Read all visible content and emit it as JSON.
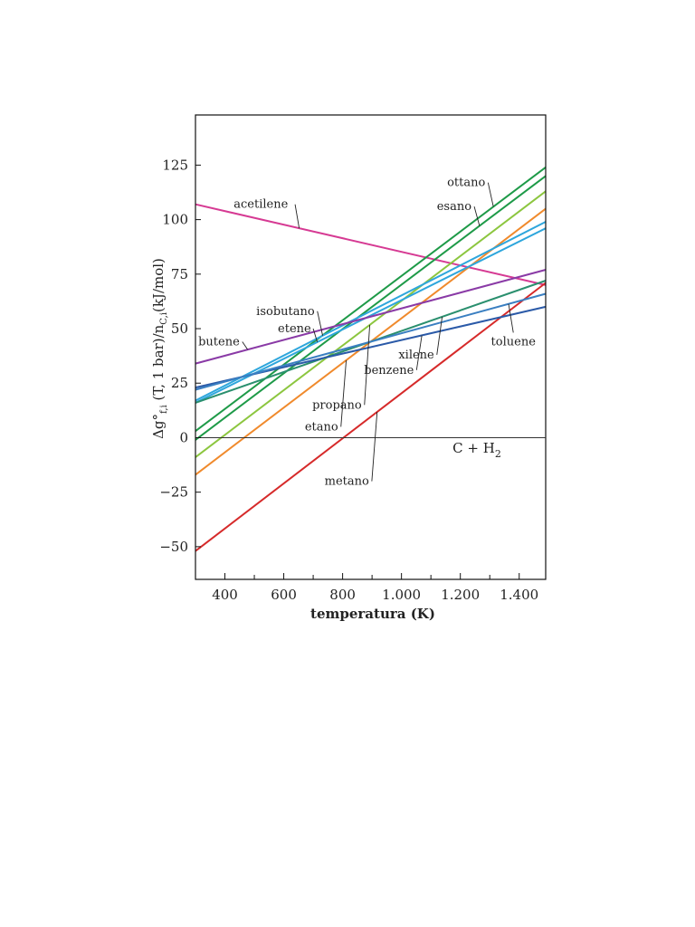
{
  "chart_data": {
    "type": "line",
    "title": "",
    "xlabel": "temperatura (K)",
    "ylabel": {
      "main": "Δg°",
      "main_sub": "f,i",
      "mid": " (T, 1 bar)/n",
      "mid_sub": "C,i",
      "tail": "(kJ/mol)"
    },
    "xlim": [
      300,
      1490
    ],
    "ylim": [
      -65,
      148
    ],
    "x_ticks": [
      400,
      600,
      800,
      1000,
      1200,
      1400
    ],
    "x_tick_labels": [
      "400",
      "600",
      "800",
      "1.000",
      "1.200",
      "1.400"
    ],
    "y_ticks": [
      -50,
      -25,
      0,
      25,
      50,
      75,
      100,
      125
    ],
    "y_tick_labels": [
      "−50",
      "−25",
      "0",
      "25",
      "50",
      "75",
      "100",
      "125"
    ],
    "reference_line": {
      "y": 0,
      "label_main": "C + H",
      "label_sub": "2"
    },
    "series": [
      {
        "name": "acetilene",
        "color": "#d63a93",
        "x": [
          300,
          1490
        ],
        "y": [
          107,
          70
        ]
      },
      {
        "name": "ottano",
        "color": "#1e9a48",
        "x": [
          300,
          1490
        ],
        "y": [
          3,
          124
        ]
      },
      {
        "name": "esano",
        "color": "#1e9a48",
        "x": [
          300,
          1490
        ],
        "y": [
          -1,
          120
        ]
      },
      {
        "name": "propano",
        "color": "#8cc63f",
        "x": [
          300,
          1490
        ],
        "y": [
          -9,
          113
        ]
      },
      {
        "name": "etano",
        "color": "#f08a2c",
        "x": [
          300,
          1490
        ],
        "y": [
          -17,
          105
        ]
      },
      {
        "name": "metano",
        "color": "#d62a2a",
        "x": [
          300,
          1490
        ],
        "y": [
          -52,
          71
        ]
      },
      {
        "name": "isobutano",
        "color": "#2ea6dc",
        "x": [
          300,
          1490
        ],
        "y": [
          17,
          99
        ]
      },
      {
        "name": "etene",
        "color": "#2ea6dc",
        "x": [
          300,
          1490
        ],
        "y": [
          16,
          96
        ]
      },
      {
        "name": "butene",
        "color": "#8a3aa6",
        "x": [
          300,
          1490
        ],
        "y": [
          34,
          77
        ]
      },
      {
        "name": "xilene",
        "color": "#2a8f6e",
        "x": [
          300,
          1490
        ],
        "y": [
          16,
          72
        ]
      },
      {
        "name": "benzene",
        "color": "#2b5aa8",
        "x": [
          300,
          1490
        ],
        "y": [
          23,
          60
        ]
      },
      {
        "name": "toluene",
        "color": "#3a7fc1",
        "x": [
          300,
          1490
        ],
        "y": [
          22,
          66
        ]
      }
    ],
    "annotations": [
      {
        "text": "acetilene",
        "x": 430,
        "y": 107,
        "anchor": "start"
      },
      {
        "text": "ottano",
        "x": 1285,
        "y": 117,
        "anchor": "end"
      },
      {
        "text": "esano",
        "x": 1238,
        "y": 106,
        "anchor": "end"
      },
      {
        "text": "isobutano",
        "x": 705,
        "y": 58,
        "anchor": "end"
      },
      {
        "text": "etene",
        "x": 580,
        "y": 50,
        "anchor": "start"
      },
      {
        "text": "butene",
        "x": 450,
        "y": 44,
        "anchor": "end"
      },
      {
        "text": "xilene",
        "x": 1111,
        "y": 38,
        "anchor": "end"
      },
      {
        "text": "benzene",
        "x": 1042,
        "y": 31,
        "anchor": "end"
      },
      {
        "text": "toluene",
        "x": 1380,
        "y": 44,
        "anchor": "middle"
      },
      {
        "text": "propano",
        "x": 865,
        "y": 15,
        "anchor": "end"
      },
      {
        "text": "etano",
        "x": 785,
        "y": 5,
        "anchor": "end"
      },
      {
        "text": "metano",
        "x": 890,
        "y": -20,
        "anchor": "end"
      }
    ]
  }
}
